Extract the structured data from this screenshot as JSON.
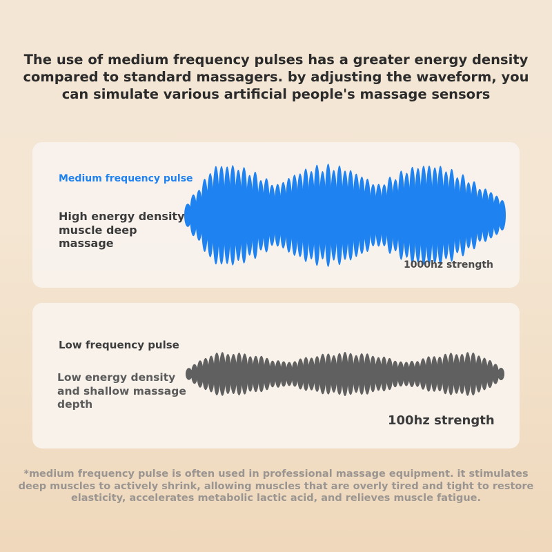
{
  "headline": "The use of medium frequency pulses has a greater energy density compared to standard massagers. by adjusting the waveform, you can simulate various artificial people's massage sensors",
  "medium_panel": {
    "title": "Medium frequency pulse",
    "description": "High energy density muscle deep massage",
    "strength": "1000hz strength",
    "wave_color": "#1e82f0"
  },
  "low_panel": {
    "title": "Low frequency pulse",
    "description": "Low energy density and shallow massage depth",
    "strength": "100hz strength",
    "wave_color": "#606060"
  },
  "footnote": "*medium frequency pulse is often used in professional massage equipment. it stimulates deep muscles to actively shrink, allowing muscles that are overly tired and tight to restore elasticity, accelerates metabolic lactic acid, and relieves muscle fatigue."
}
